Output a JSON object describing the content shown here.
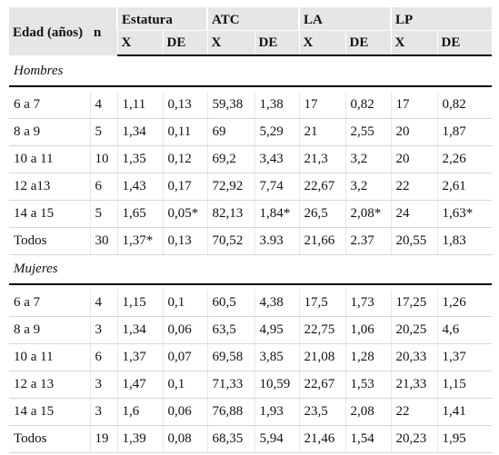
{
  "headers": {
    "age": "Edad (años)",
    "n": "n",
    "groups": [
      "Estatura",
      "ATC",
      "LA",
      "LP"
    ],
    "sub": [
      "X",
      "DE"
    ]
  },
  "sections": [
    {
      "label": "Hombres",
      "rows": [
        [
          "6 a 7",
          "4",
          "1,11",
          "0,13",
          "59,38",
          "1,38",
          "17",
          "0,82",
          "17",
          "0,82"
        ],
        [
          "8 a 9",
          "5",
          "1,34",
          "0,11",
          "69",
          "5,29",
          "21",
          "2,55",
          "20",
          "1,87"
        ],
        [
          "10 a 11",
          "10",
          "1,35",
          "0,12",
          "69,2",
          "3,43",
          "21,3",
          "3,2",
          "20",
          "2,26"
        ],
        [
          "12 a13",
          "6",
          "1,43",
          "0,17",
          "72,92",
          "7,74",
          "22,67",
          "3,2",
          "22",
          "2,61"
        ],
        [
          "14 a 15",
          "5",
          "1,65",
          "0,05*",
          "82,13",
          "1,84*",
          "26,5",
          "2,08*",
          "24",
          "1,63*"
        ],
        [
          "Todos",
          "30",
          "1,37*",
          "0,13",
          "70,52",
          "3.93",
          "21,66",
          "2.37",
          "20,55",
          "1,83"
        ]
      ]
    },
    {
      "label": "Mujeres",
      "rows": [
        [
          "6 a 7",
          "4",
          "1,15",
          "0,1",
          "60,5",
          "4,38",
          "17,5",
          "1,73",
          "17,25",
          "1,26"
        ],
        [
          "8 a 9",
          "3",
          "1,34",
          "0,06",
          "63,5",
          "4,95",
          "22,75",
          "1,06",
          "20,25",
          "4,6"
        ],
        [
          "10 a 11",
          "6",
          "1,37",
          "0,07",
          "69,58",
          "3,85",
          "21,08",
          "1,28",
          "20,33",
          "1,37"
        ],
        [
          "12 a 13",
          "3",
          "1,47",
          "0,1",
          "71,33",
          "10,59",
          "22,67",
          "1,53",
          "21,33",
          "1,15"
        ],
        [
          "14 a 15",
          "3",
          "1,6",
          "0,06",
          "76,88",
          "1,93",
          "23,5",
          "2,08",
          "22",
          "1,41"
        ],
        [
          "Todos",
          "19",
          "1,39",
          "0,08",
          "68,35",
          "5,94",
          "21,46",
          "1,54",
          "20,23",
          "1,95"
        ]
      ]
    }
  ]
}
